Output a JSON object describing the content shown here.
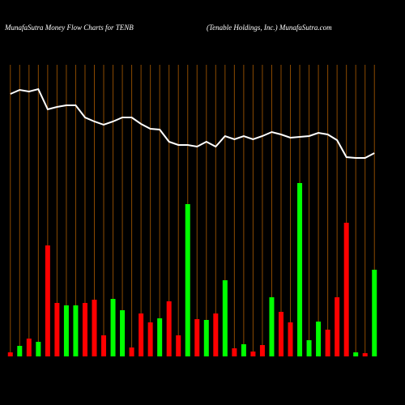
{
  "chart_data": {
    "type": "bar_line",
    "title": "MunafaSutra  Money Flow  Charts for TENB",
    "subtitle": "(Tenable   Holdings, Inc.) MunafaSutra.com",
    "categories": [
      null,
      null,
      null,
      null,
      null,
      null,
      null,
      null,
      null,
      null,
      null,
      null,
      null,
      null,
      null,
      null,
      null,
      null,
      null,
      null,
      null,
      null,
      null,
      null,
      null,
      null,
      null,
      null,
      null,
      null,
      null,
      null,
      null,
      null,
      null,
      null,
      null,
      null,
      null,
      null
    ],
    "values": [
      5,
      13,
      22,
      18,
      137,
      66,
      63,
      63,
      66,
      70,
      26,
      71,
      57,
      11,
      53,
      42,
      47,
      68,
      26,
      188,
      46,
      45,
      53,
      94,
      10,
      15,
      6,
      14,
      73,
      55,
      42,
      214,
      20,
      43,
      33,
      73,
      165,
      5,
      4,
      107
    ],
    "colors": [
      "#ff0000",
      "#00ff00",
      "#ff0000",
      "#00ff00",
      "#ff0000",
      "#ff0000",
      "#00ff00",
      "#00ff00",
      "#ff0000",
      "#ff0000",
      "#ff0000",
      "#00ff00",
      "#00ff00",
      "#ff0000",
      "#ff0000",
      "#ff0000",
      "#00ff00",
      "#ff0000",
      "#ff0000",
      "#00ff00",
      "#ff0000",
      "#00ff00",
      "#ff0000",
      "#00ff00",
      "#ff0000",
      "#00ff00",
      "#ff0000",
      "#ff0000",
      "#00ff00",
      "#ff0000",
      "#ff0000",
      "#00ff00",
      "#00ff00",
      "#00ff00",
      "#ff0000",
      "#ff0000",
      "#ff0000",
      "#00ff00",
      "#ff0000",
      "#00ff00"
    ],
    "line_values": [
      324,
      329,
      327,
      330,
      305,
      308,
      310,
      310,
      295,
      290,
      286,
      290,
      295,
      295,
      287,
      281,
      280,
      265,
      261,
      261,
      259,
      265,
      259,
      272,
      268,
      272,
      268,
      272,
      277,
      274,
      270,
      271,
      272,
      276,
      274,
      267,
      246,
      245,
      245,
      251
    ],
    "line_color": "#ffffff",
    "grid_color": "#8b4a00",
    "ylim": [
      0,
      360
    ]
  }
}
